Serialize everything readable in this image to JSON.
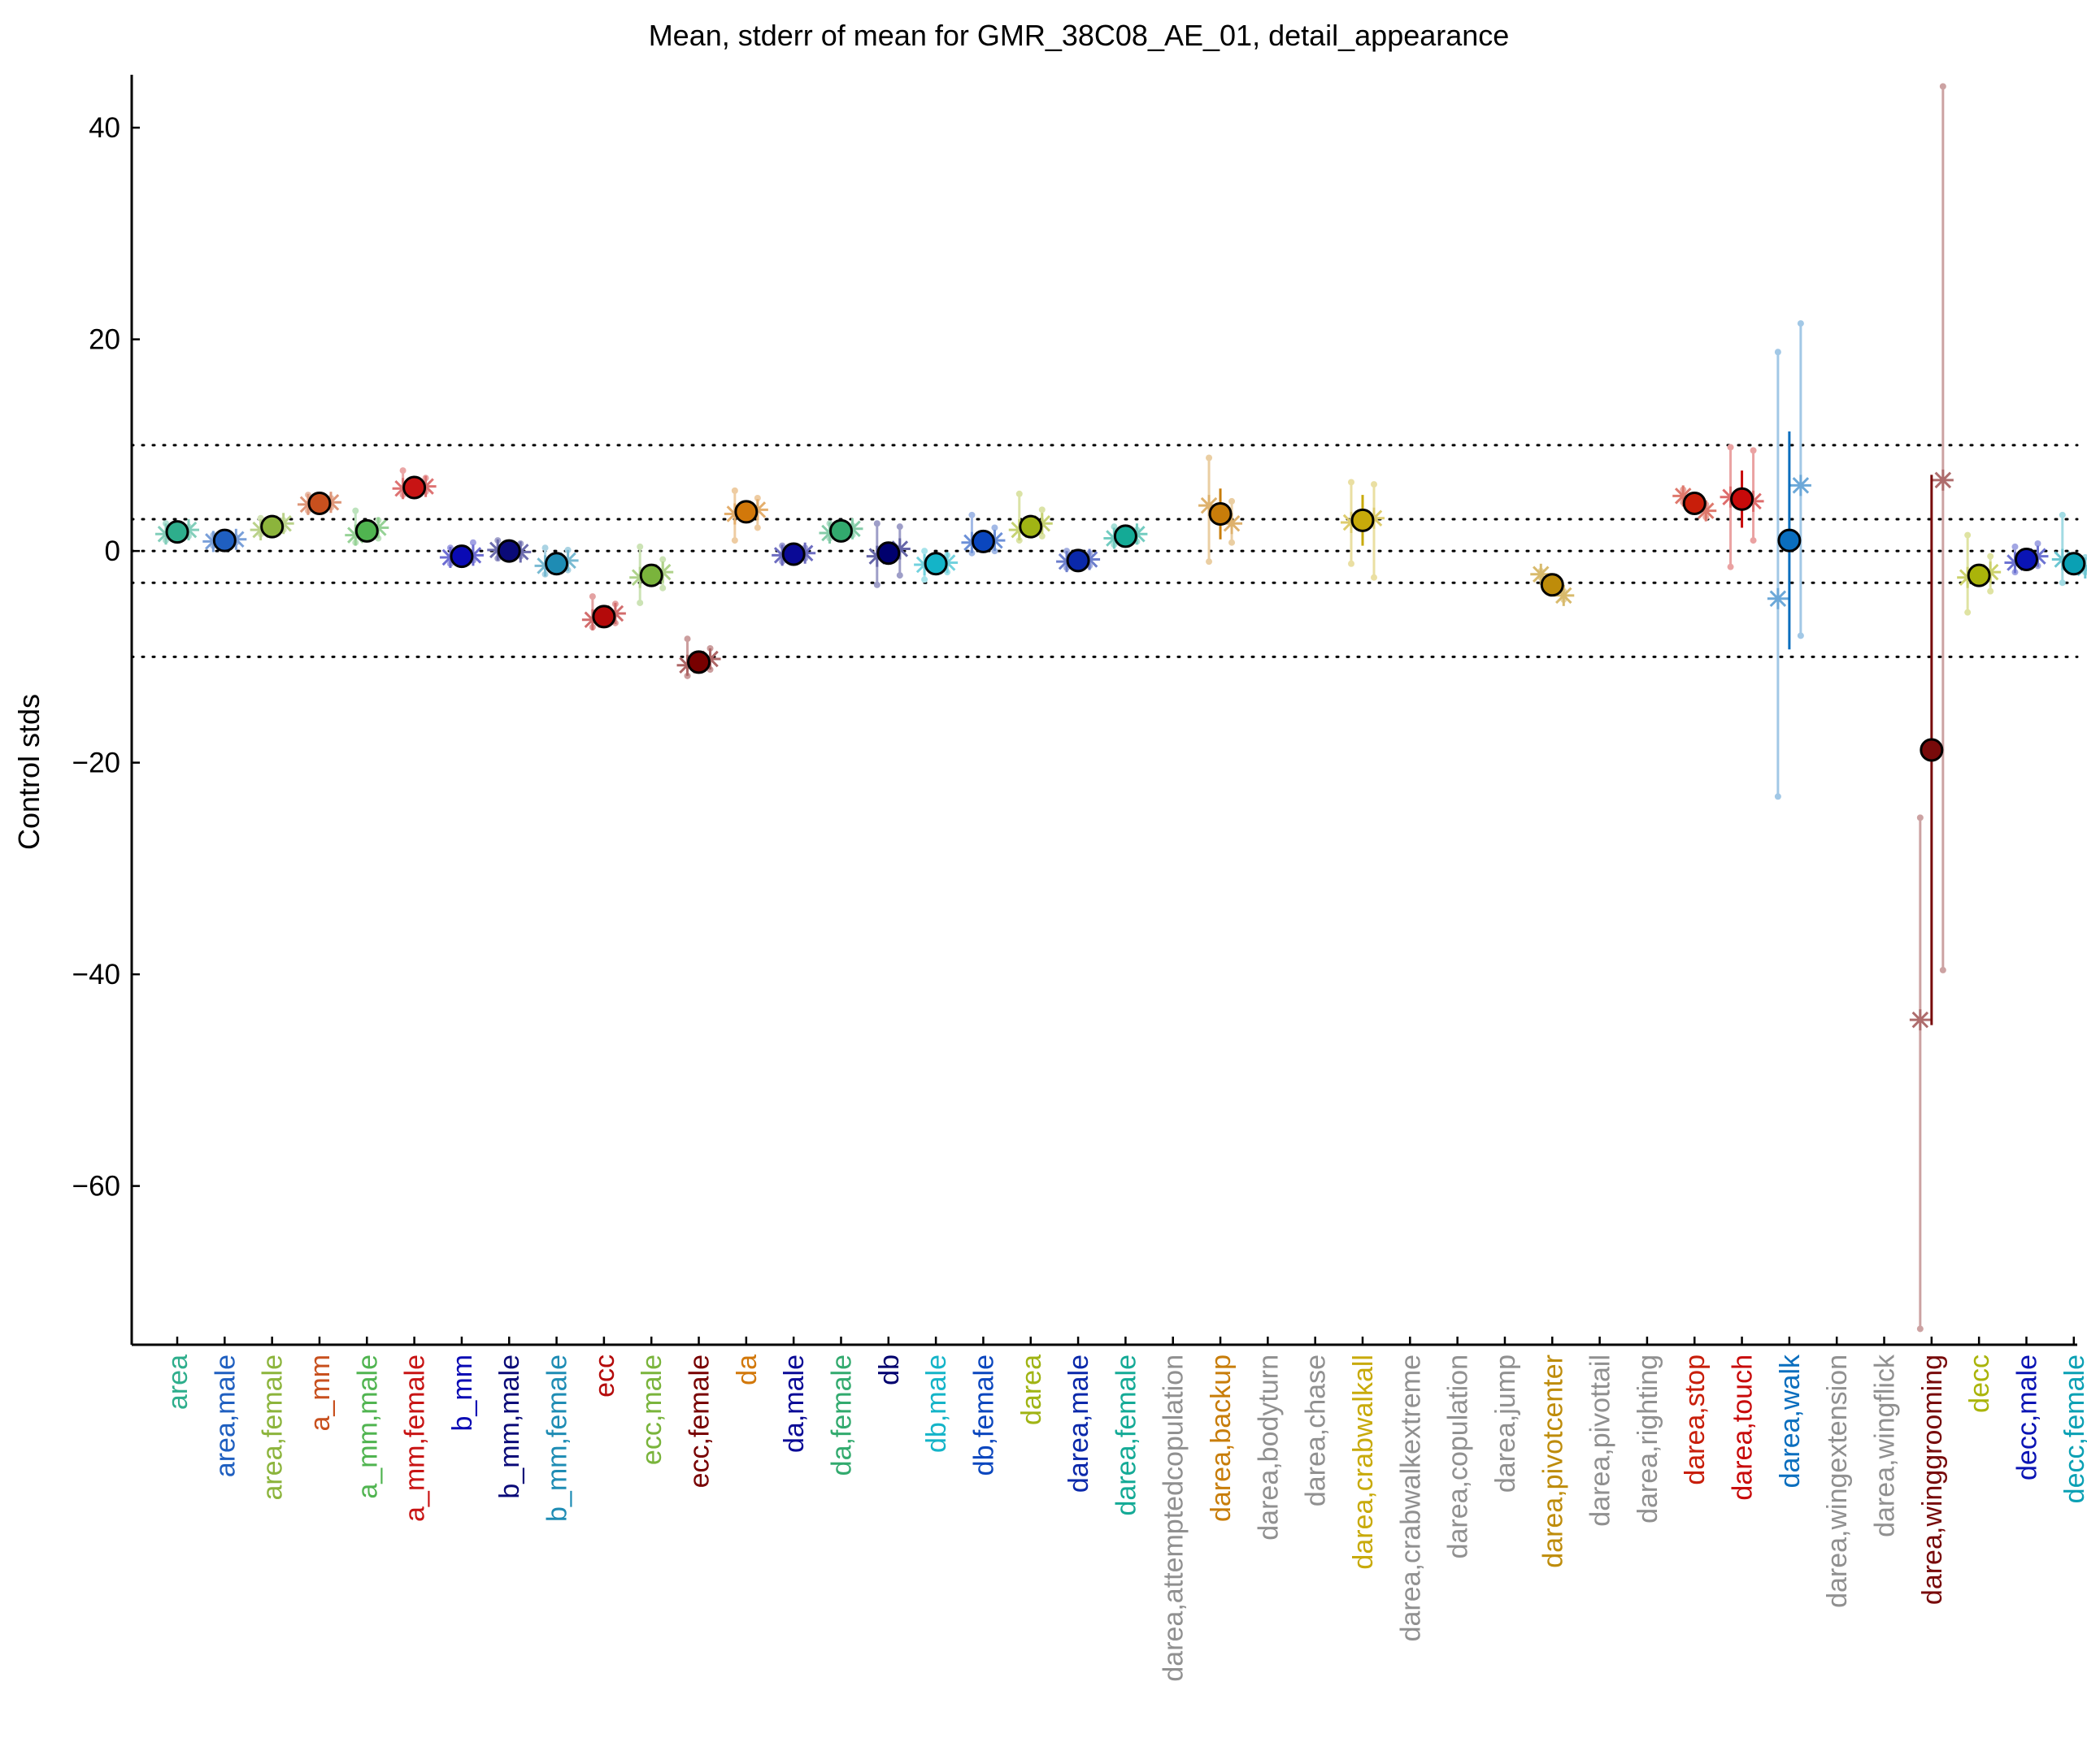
{
  "chart_data": {
    "type": "scatter",
    "title": "Mean, stderr of mean for GMR_38C08_AE_01, detail_appearance",
    "xlabel": "",
    "ylabel": "Control stds",
    "ylim": [
      -75,
      45
    ],
    "yticks": [
      40,
      20,
      0,
      -20,
      -40,
      -60
    ],
    "reference_lines": [
      10,
      3,
      0,
      -3,
      -10
    ],
    "grid": false,
    "legend": "none",
    "categories": [
      {
        "label": "area",
        "color": "#2eae8c",
        "mean": 1.8,
        "se": 0.4,
        "pts": [
          1.6,
          2.0
        ],
        "pvals": [
          1.0,
          2.6,
          1.4,
          2.3
        ]
      },
      {
        "label": "area,male",
        "color": "#1f5fc0",
        "mean": 1.0,
        "se": 0.3,
        "pts": [
          0.9,
          1.1
        ],
        "pvals": [
          0.5,
          1.5,
          0.8,
          1.3
        ]
      },
      {
        "label": "area,female",
        "color": "#8cb43c",
        "mean": 2.3,
        "se": 0.5,
        "pts": [
          2.0,
          2.6
        ],
        "pvals": [
          1.6,
          3.1,
          2.0,
          2.9
        ]
      },
      {
        "label": "a_mm",
        "color": "#c8501e",
        "mean": 4.5,
        "se": 0.4,
        "pts": [
          4.4,
          4.6
        ],
        "pvals": [
          3.8,
          5.3,
          4.1,
          5.0
        ]
      },
      {
        "label": "a_mm,male",
        "color": "#50b450",
        "mean": 1.9,
        "se": 0.5,
        "pts": [
          1.5,
          2.2
        ],
        "pvals": [
          0.8,
          3.8,
          1.2,
          2.9
        ]
      },
      {
        "label": "a_mm,female",
        "color": "#c81414",
        "mean": 6.0,
        "se": 0.5,
        "pts": [
          5.9,
          6.1
        ],
        "pvals": [
          5.3,
          7.6,
          5.6,
          6.9
        ]
      },
      {
        "label": "b_mm",
        "color": "#0a0ab4",
        "mean": -0.5,
        "se": 0.3,
        "pts": [
          -0.6,
          -0.4
        ],
        "pvals": [
          -1.2,
          0.3,
          -0.9,
          0.8
        ]
      },
      {
        "label": "b_mm,male",
        "color": "#0a0a78",
        "mean": 0.0,
        "se": 0.3,
        "pts": [
          0.1,
          -0.1
        ],
        "pvals": [
          -0.7,
          1.0,
          -0.5,
          0.7
        ]
      },
      {
        "label": "b_mm,female",
        "color": "#1e8cb4",
        "mean": -1.2,
        "se": 0.4,
        "pts": [
          -1.4,
          -0.9
        ],
        "pvals": [
          -2.2,
          0.3,
          -1.8,
          0.1
        ]
      },
      {
        "label": "ecc",
        "color": "#b40a0a",
        "mean": -6.2,
        "se": 0.5,
        "pts": [
          -6.5,
          -5.9
        ],
        "pvals": [
          -7.2,
          -4.3,
          -6.8,
          -5.0
        ]
      },
      {
        "label": "ecc,male",
        "color": "#7ab43c",
        "mean": -2.3,
        "se": 0.5,
        "pts": [
          -2.5,
          -2.0
        ],
        "pvals": [
          -4.9,
          0.4,
          -3.5,
          -0.8
        ]
      },
      {
        "label": "ecc,female",
        "color": "#780000",
        "mean": -10.5,
        "se": 0.5,
        "pts": [
          -10.8,
          -10.2
        ],
        "pvals": [
          -11.8,
          -8.3,
          -11.2,
          -9.2
        ]
      },
      {
        "label": "da",
        "color": "#d2780a",
        "mean": 3.7,
        "se": 0.5,
        "pts": [
          3.5,
          3.9
        ],
        "pvals": [
          1.0,
          5.7,
          2.2,
          5.0
        ]
      },
      {
        "label": "da,male",
        "color": "#0a0a96",
        "mean": -0.3,
        "se": 0.3,
        "pts": [
          -0.4,
          -0.2
        ],
        "pvals": [
          -1.0,
          0.5,
          -0.7,
          0.3
        ]
      },
      {
        "label": "da,female",
        "color": "#32aa6e",
        "mean": 1.9,
        "se": 0.4,
        "pts": [
          1.7,
          2.1
        ],
        "pvals": [
          1.2,
          2.6,
          1.5,
          2.4
        ]
      },
      {
        "label": "db",
        "color": "#00006e",
        "mean": -0.2,
        "se": 0.8,
        "pts": [
          -0.5,
          0.2
        ],
        "pvals": [
          -3.2,
          2.6,
          -2.3,
          2.3
        ]
      },
      {
        "label": "db,male",
        "color": "#14b4c8",
        "mean": -1.2,
        "se": 0.4,
        "pts": [
          -1.3,
          -1.1
        ],
        "pvals": [
          -2.7,
          0.0,
          -2.0,
          -0.4
        ]
      },
      {
        "label": "db,female",
        "color": "#0a46be",
        "mean": 0.9,
        "se": 0.5,
        "pts": [
          0.8,
          1.0
        ],
        "pvals": [
          -0.2,
          3.4,
          0.0,
          2.2
        ]
      },
      {
        "label": "darea",
        "color": "#a0b414",
        "mean": 2.3,
        "se": 0.5,
        "pts": [
          2.0,
          2.6
        ],
        "pvals": [
          1.0,
          5.4,
          1.4,
          3.9
        ]
      },
      {
        "label": "darea,male",
        "color": "#0a28aa",
        "mean": -0.9,
        "se": 0.3,
        "pts": [
          -1.0,
          -0.8
        ],
        "pvals": [
          -1.6,
          0.0,
          -1.4,
          -0.2
        ]
      },
      {
        "label": "darea,female",
        "color": "#14aa96",
        "mean": 1.4,
        "se": 0.4,
        "pts": [
          1.2,
          1.6
        ],
        "pvals": [
          0.6,
          2.3,
          0.9,
          2.0
        ]
      },
      {
        "label": "darea,attemptedcopulation",
        "color": "#909090"
      },
      {
        "label": "darea,backup",
        "color": "#c87d0a",
        "mean": 3.5,
        "se": 2.4,
        "pts": [
          4.3,
          2.6
        ],
        "pvals": [
          -1.0,
          8.8,
          0.8,
          4.7
        ]
      },
      {
        "label": "darea,bodyturn",
        "color": "#909090"
      },
      {
        "label": "darea,chase",
        "color": "#909090"
      },
      {
        "label": "darea,crabwalkall",
        "color": "#c8aa0a",
        "mean": 2.9,
        "se": 2.4,
        "pts": [
          2.7,
          3.1
        ],
        "pvals": [
          -1.2,
          6.5,
          -2.5,
          6.3
        ]
      },
      {
        "label": "darea,crabwalkextreme",
        "color": "#909090"
      },
      {
        "label": "darea,copulation",
        "color": "#909090"
      },
      {
        "label": "darea,jump",
        "color": "#909090"
      },
      {
        "label": "darea,pivotcenter",
        "color": "#be8c0a",
        "mean": -3.2,
        "se": 0.5,
        "pts": [
          -2.2,
          -4.2
        ],
        "pvals": [
          -2.5,
          -1.9,
          -4.6,
          -3.8
        ]
      },
      {
        "label": "darea,pivottail",
        "color": "#909090"
      },
      {
        "label": "darea,righting",
        "color": "#909090"
      },
      {
        "label": "darea,stop",
        "color": "#c81e0a",
        "mean": 4.5,
        "se": 0.4,
        "pts": [
          5.2,
          3.8
        ],
        "pvals": [
          4.6,
          5.8,
          3.2,
          4.4
        ]
      },
      {
        "label": "darea,touch",
        "color": "#c80a0a",
        "mean": 4.9,
        "se": 2.7,
        "pts": [
          5.1,
          4.7
        ],
        "pvals": [
          -1.5,
          9.8,
          1.0,
          9.5
        ]
      },
      {
        "label": "darea,walk",
        "color": "#0a6ebe",
        "mean": 1.0,
        "se": 10.3,
        "pts": [
          -4.5,
          6.2
        ],
        "pvals": [
          -23.2,
          18.8,
          -8.0,
          21.5
        ]
      },
      {
        "label": "darea,wingextension",
        "color": "#909090"
      },
      {
        "label": "darea,wingflick",
        "color": "#909090"
      },
      {
        "label": "darea,winggrooming",
        "color": "#780a0a",
        "mean": -18.8,
        "se": 26.0,
        "pts": [
          -44.3,
          6.7
        ],
        "pvals": [
          -73.5,
          -25.2,
          -39.6,
          43.9
        ]
      },
      {
        "label": "decc",
        "color": "#aab40a",
        "mean": -2.3,
        "se": 0.6,
        "pts": [
          -2.5,
          -2.0
        ],
        "pvals": [
          -5.8,
          1.5,
          -3.8,
          -0.5
        ]
      },
      {
        "label": "decc,male",
        "color": "#0a14b4",
        "mean": -0.8,
        "se": 0.4,
        "pts": [
          -1.1,
          -0.5
        ],
        "pvals": [
          -2.0,
          0.4,
          -1.4,
          0.7
        ]
      },
      {
        "label": "decc,female",
        "color": "#0aa0b4",
        "mean": -1.2,
        "se": 0.6,
        "pts": [
          -0.8,
          -1.6
        ],
        "pvals": [
          -3.0,
          3.4,
          -2.0,
          -0.6
        ]
      }
    ]
  }
}
